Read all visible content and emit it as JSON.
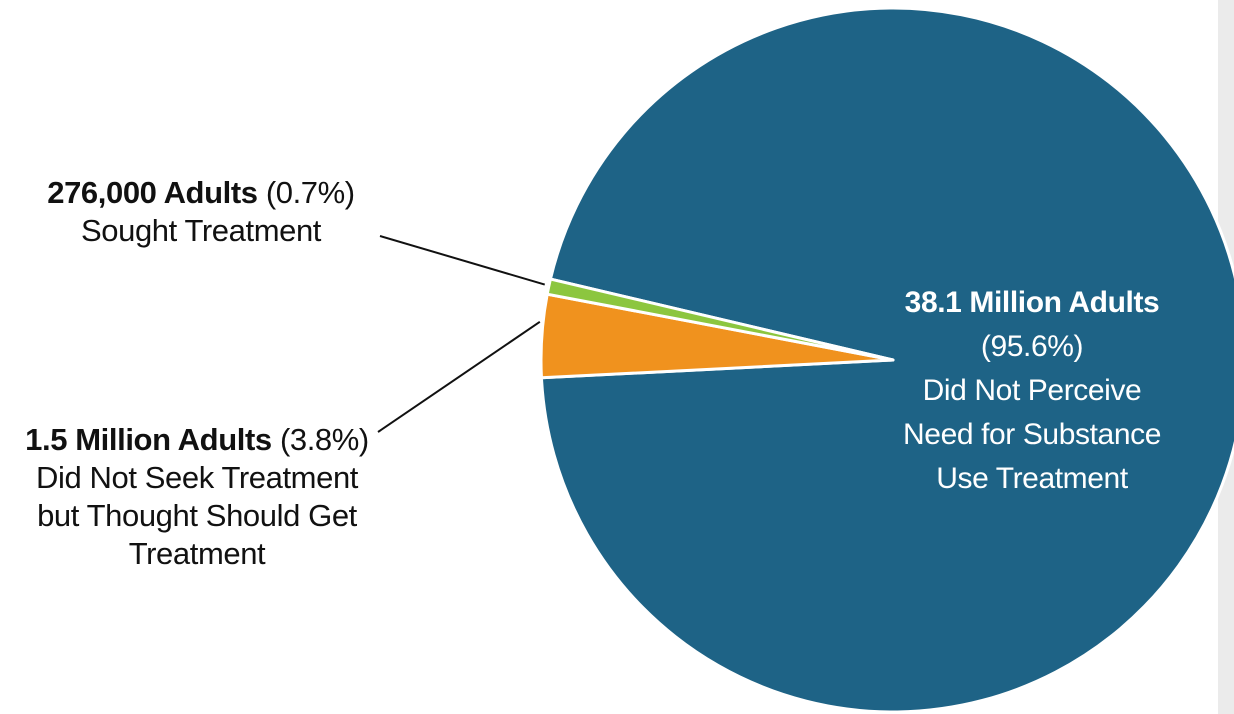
{
  "chart_data": {
    "type": "pie",
    "slices": [
      {
        "count": "38.1 Million Adults",
        "percent": 95.6,
        "percent_label": "(95.6%)",
        "description_lines": [
          "Did Not Perceive",
          "Need for Substance",
          "Use Treatment"
        ],
        "color": "#1e6386"
      },
      {
        "count": "1.5 Million Adults",
        "percent": 3.8,
        "percent_label": "(3.8%)",
        "description_lines": [
          "Did Not Seek Treatment",
          "but Thought Should Get",
          "Treatment"
        ],
        "color": "#f0921e"
      },
      {
        "count": "276,000 Adults",
        "percent": 0.7,
        "percent_label": "(0.7%)",
        "description_lines": [
          "Sought Treatment"
        ],
        "color": "#8cc63f"
      }
    ],
    "slice_border_color": "#ffffff",
    "leader_line_color": "#111111"
  }
}
